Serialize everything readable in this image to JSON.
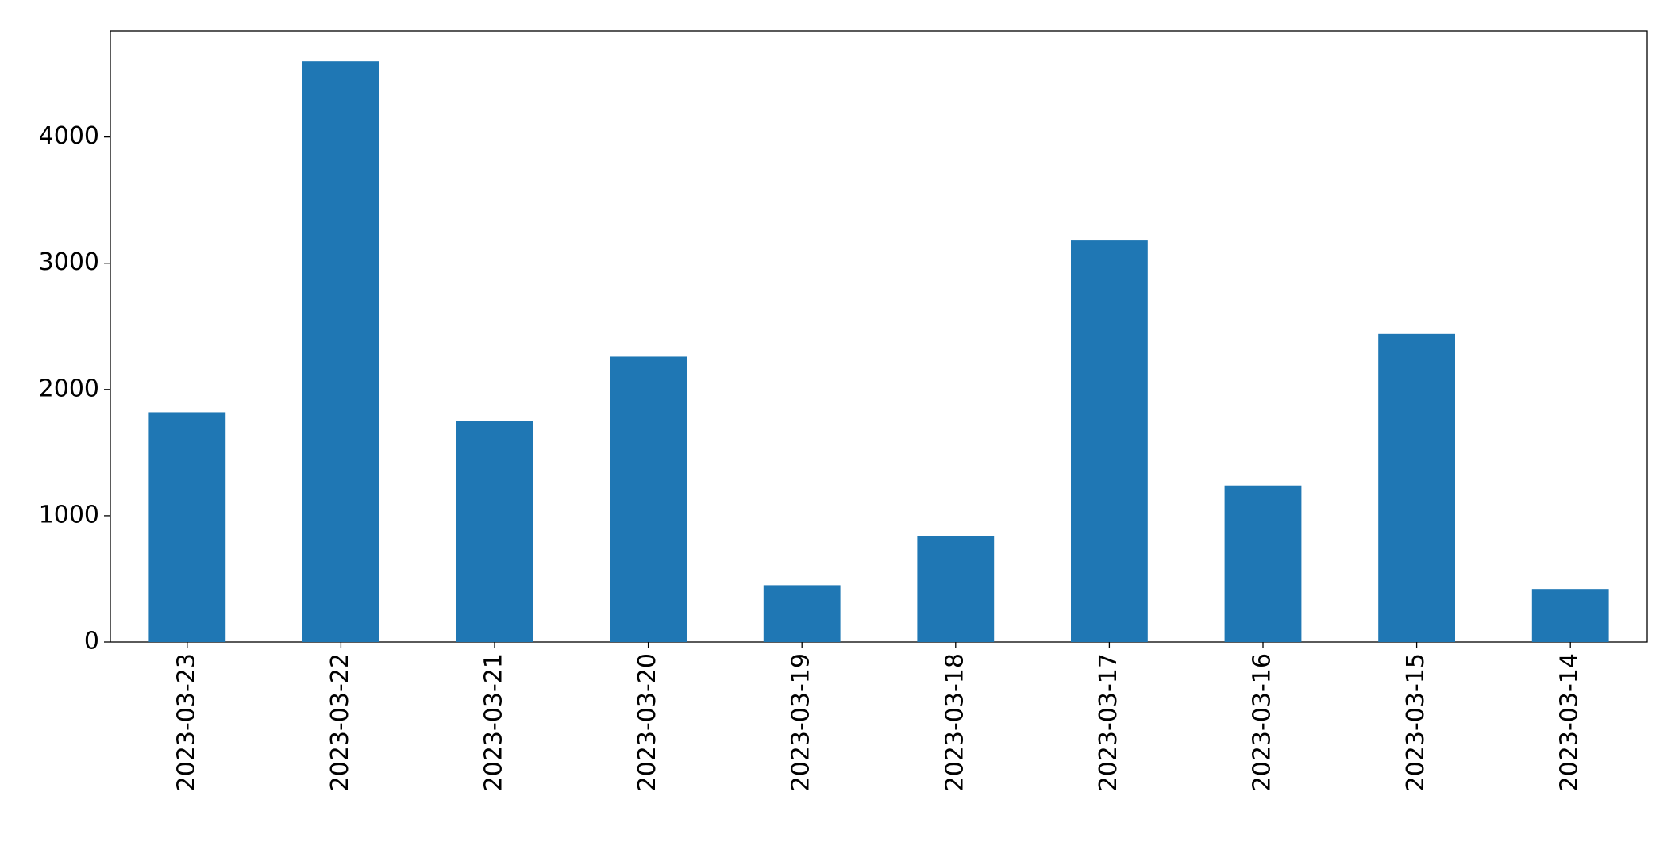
{
  "chart_data": {
    "type": "bar",
    "categories": [
      "2023-03-23",
      "2023-03-22",
      "2023-03-21",
      "2023-03-20",
      "2023-03-19",
      "2023-03-18",
      "2023-03-17",
      "2023-03-16",
      "2023-03-15",
      "2023-03-14"
    ],
    "values": [
      1820,
      4600,
      1750,
      2260,
      450,
      840,
      3180,
      1240,
      2440,
      420
    ],
    "color": "#1f77b4",
    "ylim": [
      0,
      4840
    ],
    "yticks": [
      0,
      1000,
      2000,
      3000,
      4000
    ],
    "grid": false
  }
}
